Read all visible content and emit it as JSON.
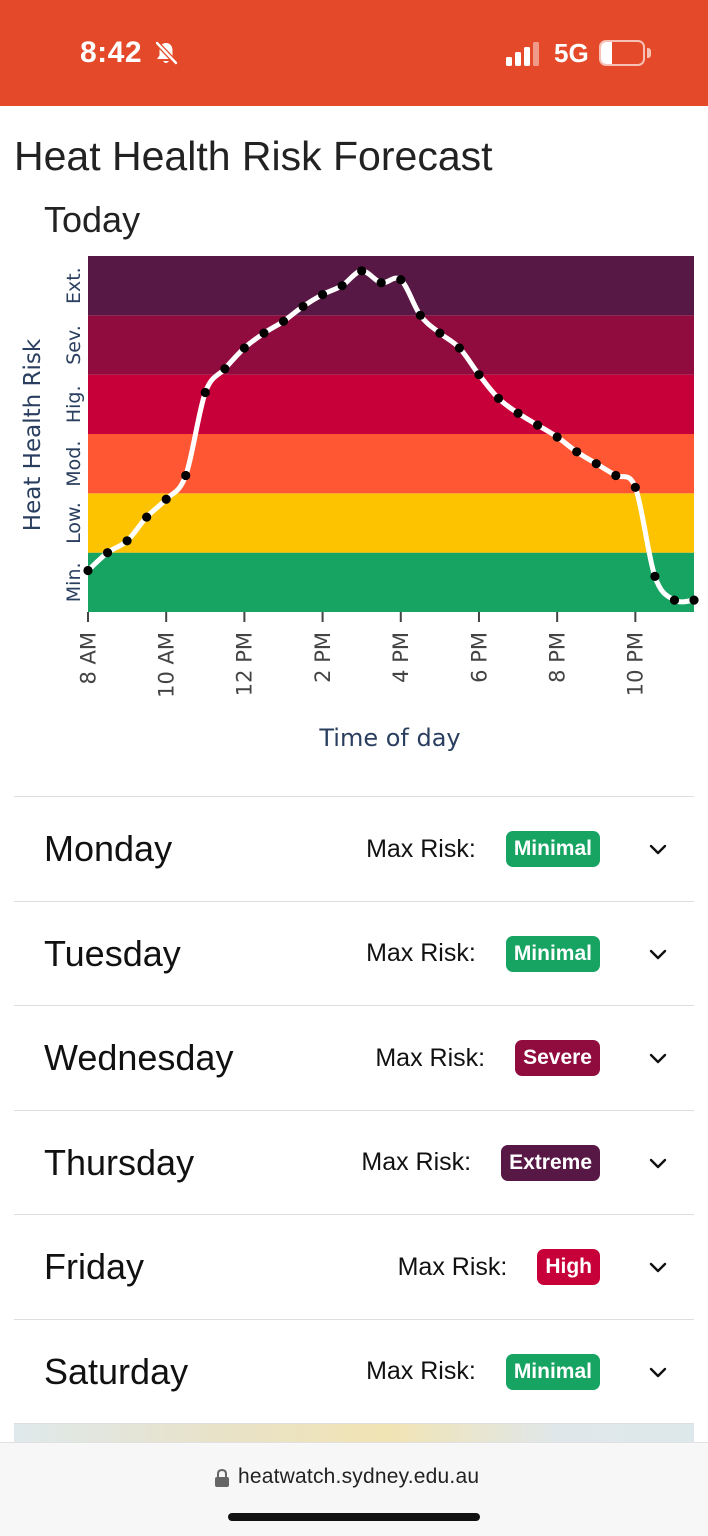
{
  "status_bar": {
    "time": "8:42",
    "network": "5G",
    "battery_level": "25",
    "battery_fraction": 0.25,
    "color": "#e44a2a"
  },
  "page": {
    "title": "Heat Health Risk Forecast"
  },
  "chart_data": {
    "type": "line",
    "title": "Today",
    "xlabel": "Time of day",
    "ylabel": "Heat Health Risk",
    "x_tick_labels": [
      "8 AM",
      "10 AM",
      "12 PM",
      "2 PM",
      "4 PM",
      "6 PM",
      "8 PM",
      "10 PM"
    ],
    "x_tick_hours": [
      8,
      10,
      12,
      14,
      16,
      18,
      20,
      22
    ],
    "xlim": [
      8,
      23.5
    ],
    "y_categories": [
      "Min.",
      "Low.",
      "Mod.",
      "Hig.",
      "Sev.",
      "Ext."
    ],
    "ylim": [
      0,
      6
    ],
    "band_colors": [
      "#17a463",
      "#fec300",
      "#ff5733",
      "#c70039",
      "#900c3e",
      "#581845"
    ],
    "series": [
      {
        "line_color": "#ffffff",
        "marker_color": "#000000",
        "x": [
          8,
          8.5,
          9,
          9.5,
          10,
          10.5,
          11,
          11.5,
          12,
          12.5,
          13,
          13.5,
          14,
          14.5,
          15,
          15.5,
          16,
          16.5,
          17,
          17.5,
          18,
          18.5,
          19,
          19.5,
          20,
          20.5,
          21,
          21.5,
          22,
          22.5,
          23,
          23.5
        ],
        "y": [
          0.7,
          1.0,
          1.2,
          1.6,
          1.9,
          2.3,
          3.7,
          4.1,
          4.45,
          4.7,
          4.9,
          5.15,
          5.35,
          5.5,
          5.75,
          5.55,
          5.6,
          5.0,
          4.7,
          4.45,
          4.0,
          3.6,
          3.35,
          3.15,
          2.95,
          2.7,
          2.5,
          2.3,
          2.1,
          0.6,
          0.2,
          0.2
        ]
      }
    ]
  },
  "forecast": {
    "max_risk_label": "Max Risk:",
    "days": [
      {
        "day": "Monday",
        "risk": "Minimal",
        "color": "#17a463"
      },
      {
        "day": "Tuesday",
        "risk": "Minimal",
        "color": "#17a463"
      },
      {
        "day": "Wednesday",
        "risk": "Severe",
        "color": "#900c3e"
      },
      {
        "day": "Thursday",
        "risk": "Extreme",
        "color": "#581845"
      },
      {
        "day": "Friday",
        "risk": "High",
        "color": "#c70039"
      },
      {
        "day": "Saturday",
        "risk": "Minimal",
        "color": "#17a463"
      }
    ]
  },
  "browser": {
    "url": "heatwatch.sydney.edu.au"
  }
}
